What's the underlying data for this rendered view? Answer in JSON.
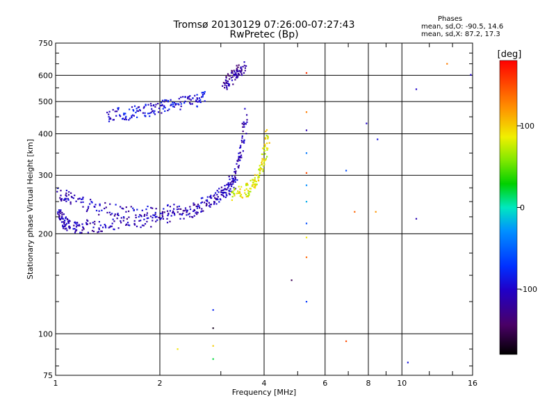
{
  "chart_data": {
    "type": "scatter",
    "title": "Tromsø 20130129 07:26:00-07:27:43",
    "subtitle": "RwPretec (Bp)",
    "xlabel": "Frequency [MHz]",
    "ylabel": "Stationary phase Virtual Height [km]",
    "x_scale": "log",
    "y_scale": "log",
    "xlim": [
      1,
      16
    ],
    "ylim": [
      75,
      750
    ],
    "x_ticks": [
      1,
      2,
      4,
      6,
      8,
      10,
      16
    ],
    "x_minor_ticks": [
      3,
      5,
      7,
      9,
      12,
      14
    ],
    "y_ticks": [
      75,
      100,
      200,
      300,
      400,
      500,
      600,
      750
    ],
    "y_minor_ticks": [
      80,
      90,
      125,
      150,
      175,
      225,
      250,
      275,
      350,
      450,
      550,
      650,
      700
    ],
    "grid": true,
    "stats": {
      "heading": "Phases",
      "line1": "mean, sd,O: -90.5, 14.6",
      "line2": "mean, sd,X: 87.2, 17.3"
    },
    "colorbar": {
      "label": "[deg]",
      "range": [
        -180,
        180
      ],
      "ticks": [
        100,
        0,
        -100
      ]
    },
    "series": [
      {
        "color_encoding": "phase [deg]",
        "description_of_traces": [
          {
            "x": [
              1.02,
              1.05,
              1.1,
              1.2,
              1.4,
              1.7,
              2.0,
              2.4,
              2.8,
              3.1,
              3.3,
              3.45,
              3.55
            ],
            "y": [
              230,
              218,
              211,
              210,
              212,
              216,
              222,
              232,
              248,
              270,
              300,
              360,
              460
            ],
            "phase": -110
          },
          {
            "x": [
              1.02,
              1.1,
              1.3,
              1.6,
              2.0,
              2.5,
              3.0,
              3.3
            ],
            "y": [
              265,
              255,
              240,
              232,
              232,
              240,
              260,
              290
            ],
            "phase": -105
          },
          {
            "x": [
              1.4,
              1.6,
              1.8,
              2.0,
              2.2,
              2.5,
              2.7
            ],
            "y": [
              455,
              460,
              470,
              480,
              490,
              500,
              515
            ],
            "phase": -95
          },
          {
            "x": [
              3.05,
              3.2,
              3.35,
              3.5
            ],
            "y": [
              560,
              585,
              610,
              640
            ],
            "phase": -120
          },
          {
            "x": [
              3.2,
              3.5,
              3.7,
              3.85,
              4.0,
              4.1
            ],
            "y": [
              262,
              268,
              280,
              300,
              340,
              400
            ],
            "phase": 85
          }
        ]
      }
    ],
    "isolated_points": [
      {
        "x": 2.25,
        "y": 90,
        "phase": 90
      },
      {
        "x": 2.85,
        "y": 92,
        "phase": 100
      },
      {
        "x": 2.85,
        "y": 84,
        "phase": 20
      },
      {
        "x": 2.85,
        "y": 104,
        "phase": -170
      },
      {
        "x": 2.85,
        "y": 118,
        "phase": -80
      },
      {
        "x": 4.8,
        "y": 145,
        "phase": -150
      },
      {
        "x": 5.3,
        "y": 125,
        "phase": -70
      },
      {
        "x": 5.3,
        "y": 610,
        "phase": 160
      },
      {
        "x": 5.3,
        "y": 465,
        "phase": 130
      },
      {
        "x": 5.3,
        "y": 410,
        "phase": -110
      },
      {
        "x": 5.3,
        "y": 350,
        "phase": -40
      },
      {
        "x": 5.3,
        "y": 305,
        "phase": 150
      },
      {
        "x": 5.3,
        "y": 280,
        "phase": -30
      },
      {
        "x": 5.3,
        "y": 250,
        "phase": -20
      },
      {
        "x": 5.3,
        "y": 215,
        "phase": -60
      },
      {
        "x": 5.3,
        "y": 195,
        "phase": 90
      },
      {
        "x": 5.3,
        "y": 170,
        "phase": 140
      },
      {
        "x": 6.9,
        "y": 310,
        "phase": -60
      },
      {
        "x": 6.9,
        "y": 95,
        "phase": 150
      },
      {
        "x": 7.3,
        "y": 233,
        "phase": 140
      },
      {
        "x": 7.9,
        "y": 430,
        "phase": -100
      },
      {
        "x": 8.4,
        "y": 233,
        "phase": 120
      },
      {
        "x": 8.5,
        "y": 385,
        "phase": -90
      },
      {
        "x": 10.4,
        "y": 82,
        "phase": -90
      },
      {
        "x": 11.0,
        "y": 545,
        "phase": -100
      },
      {
        "x": 11.0,
        "y": 222,
        "phase": -110
      },
      {
        "x": 13.5,
        "y": 650,
        "phase": 130
      },
      {
        "x": 15.8,
        "y": 602,
        "phase": -100
      }
    ]
  },
  "colors": {
    "grid": "#000000",
    "background": "#ffffff"
  }
}
